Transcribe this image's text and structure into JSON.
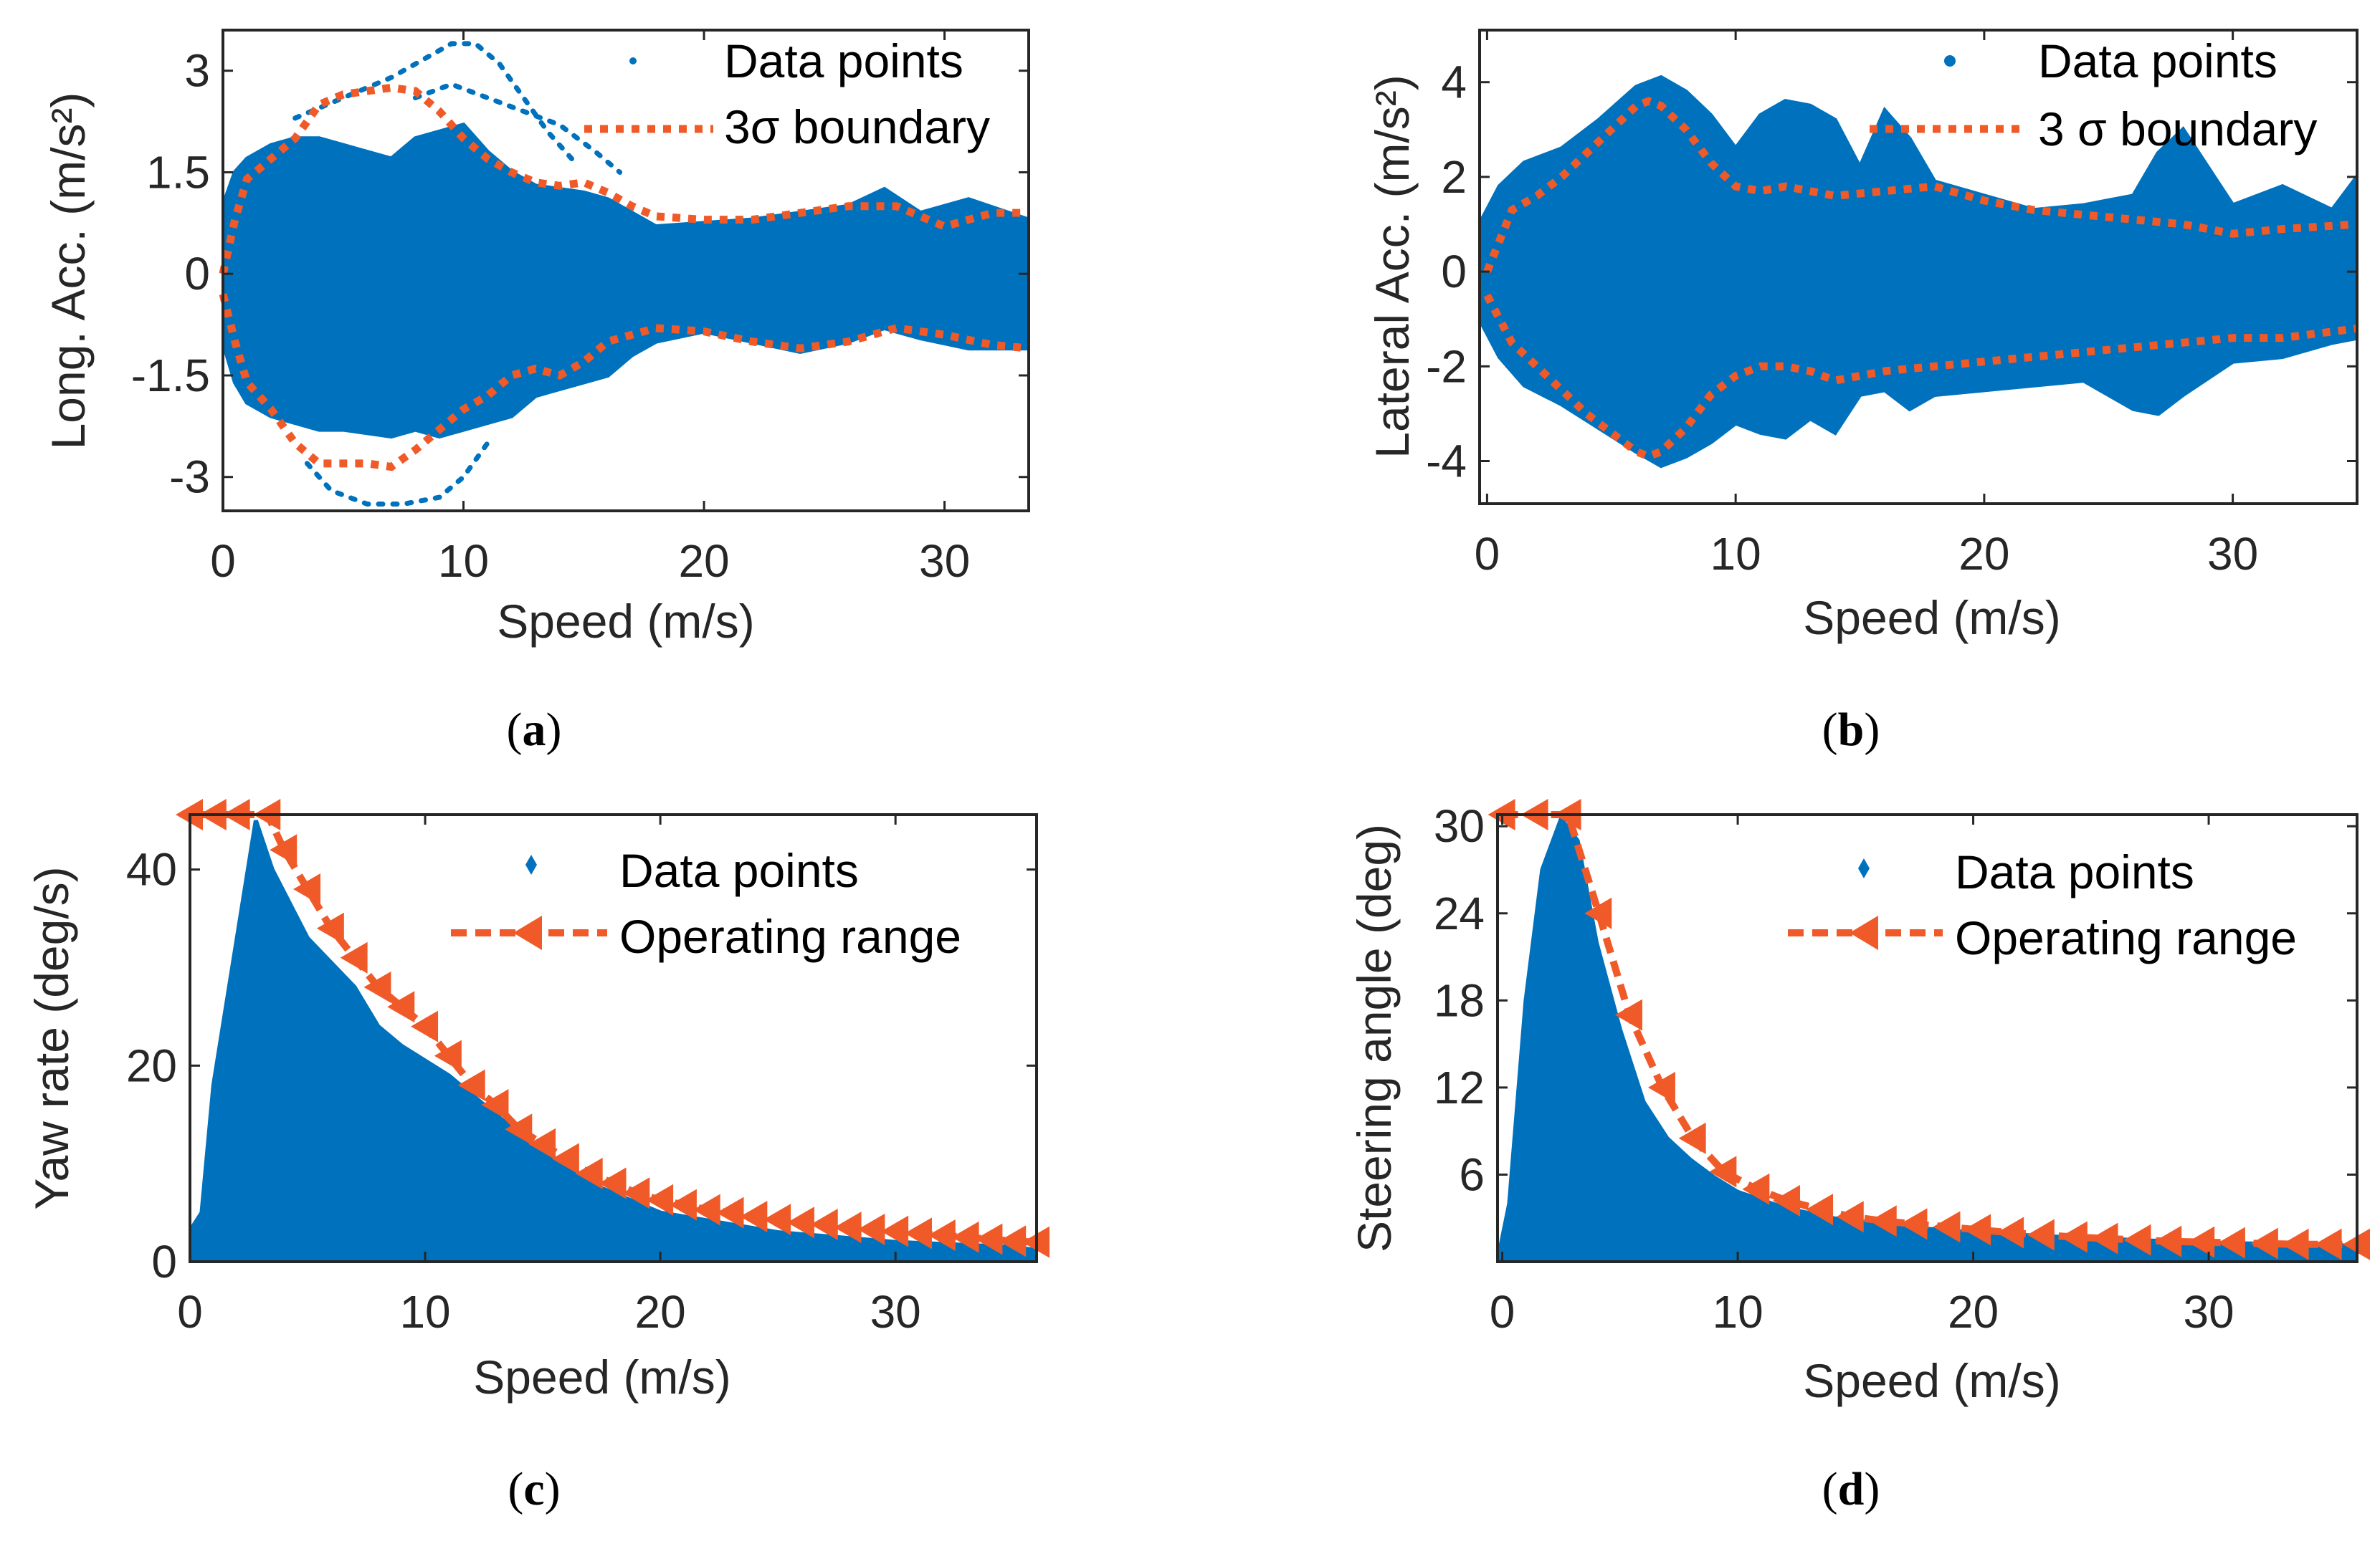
{
  "chart_data": [
    {
      "id": "a",
      "type": "scatter",
      "caption_letter": "a",
      "xlabel": "Speed (m/s)",
      "ylabel": "Long. Acc. (m/s²)",
      "xlim": [
        0,
        33.5
      ],
      "ylim": [
        -3.5,
        3.6
      ],
      "xticks": [
        0,
        10,
        20,
        30
      ],
      "xtick_labels": [
        "0",
        "10",
        "20",
        "30"
      ],
      "yticks": [
        3,
        1.5,
        0,
        -1.5,
        -3
      ],
      "ytick_labels": [
        "3",
        "1.5",
        "0",
        "-1.5",
        "-3"
      ],
      "legend": {
        "placement": "top-right",
        "entries": [
          "Data points",
          "3σ boundary"
        ]
      },
      "colors": {
        "data": "#0072BD",
        "boundary": "#F05A28"
      },
      "boundary_style": "dotted",
      "data_cloud": {
        "x": [
          0,
          0.5,
          1,
          2,
          3,
          4,
          5,
          6,
          7,
          8,
          9,
          10,
          11,
          12,
          13,
          14,
          15,
          16,
          17,
          18,
          20,
          22,
          24,
          26,
          27.5,
          29,
          31,
          33.5
        ],
        "upper": [
          1.0,
          1.5,
          1.7,
          1.9,
          2.0,
          2.0,
          1.9,
          1.8,
          1.7,
          2.0,
          2.1,
          2.2,
          1.8,
          1.5,
          1.3,
          1.25,
          1.2,
          1.1,
          0.9,
          0.7,
          0.75,
          0.8,
          0.9,
          1.0,
          1.25,
          0.9,
          1.1,
          0.8
        ],
        "lower": [
          -1.0,
          -1.6,
          -1.9,
          -2.1,
          -2.2,
          -2.3,
          -2.3,
          -2.35,
          -2.4,
          -2.3,
          -2.4,
          -2.3,
          -2.2,
          -2.1,
          -1.8,
          -1.7,
          -1.6,
          -1.5,
          -1.2,
          -1.0,
          -0.85,
          -1.0,
          -1.15,
          -1.0,
          -0.8,
          -0.95,
          -1.1,
          -1.1
        ]
      },
      "data_traces": [
        {
          "x": [
            3,
            5,
            7,
            8.5,
            9.5,
            10.5,
            11.5,
            12.5,
            13.5,
            14.5
          ],
          "y": [
            2.3,
            2.6,
            2.9,
            3.2,
            3.4,
            3.4,
            3.1,
            2.6,
            2.1,
            1.7
          ]
        },
        {
          "x": [
            8,
            9.5,
            11,
            12.5,
            14,
            15.5,
            16.5
          ],
          "y": [
            2.6,
            2.8,
            2.6,
            2.4,
            2.2,
            1.8,
            1.5
          ]
        },
        {
          "x": [
            3.5,
            4.5,
            6,
            7.5,
            9,
            10,
            11
          ],
          "y": [
            -2.8,
            -3.2,
            -3.4,
            -3.4,
            -3.3,
            -3.0,
            -2.5
          ]
        }
      ],
      "boundary": {
        "name": "3σ boundary",
        "x": [
          0,
          0.5,
          1,
          2,
          3,
          4,
          5,
          6,
          7,
          8,
          9,
          10,
          11,
          12,
          13,
          14,
          15,
          16,
          17,
          18,
          20,
          22,
          24,
          26,
          28,
          30,
          32,
          33.5
        ],
        "upper": [
          0,
          0.8,
          1.4,
          1.7,
          2.0,
          2.5,
          2.65,
          2.7,
          2.75,
          2.7,
          2.4,
          2.0,
          1.7,
          1.5,
          1.35,
          1.3,
          1.35,
          1.2,
          1.0,
          0.85,
          0.8,
          0.8,
          0.9,
          1.0,
          1.0,
          0.7,
          0.9,
          0.9
        ],
        "lower": [
          -0.3,
          -1.0,
          -1.6,
          -2.0,
          -2.5,
          -2.8,
          -2.8,
          -2.8,
          -2.85,
          -2.6,
          -2.3,
          -2.0,
          -1.8,
          -1.5,
          -1.4,
          -1.5,
          -1.3,
          -1.0,
          -0.9,
          -0.8,
          -0.85,
          -1.0,
          -1.1,
          -1.0,
          -0.8,
          -0.9,
          -1.05,
          -1.1
        ]
      }
    },
    {
      "id": "b",
      "type": "scatter",
      "caption_letter": "b",
      "xlabel": "Speed (m/s)",
      "ylabel": "Lateral Acc. (m/s²)",
      "xlim": [
        -0.3,
        35
      ],
      "ylim": [
        -4.9,
        5.1
      ],
      "xticks": [
        0,
        10,
        20,
        30
      ],
      "xtick_labels": [
        "0",
        "10",
        "20",
        "30"
      ],
      "yticks": [
        4,
        2,
        0,
        -2,
        -4
      ],
      "ytick_labels": [
        "4",
        "2",
        "0",
        "-2",
        "-4"
      ],
      "legend": {
        "placement": "top-right",
        "entries": [
          "Data points",
          "3 σ boundary"
        ]
      },
      "colors": {
        "data": "#0072BD",
        "boundary": "#F05A28"
      },
      "boundary_style": "dotted",
      "data_cloud": {
        "x": [
          -0.3,
          0.5,
          1.5,
          3,
          4.5,
          6,
          7,
          8,
          9,
          10,
          11,
          12,
          13,
          14,
          15,
          16,
          17,
          18,
          20,
          22,
          24,
          26,
          27,
          28,
          30,
          32,
          34,
          35
        ],
        "upper": [
          1.0,
          1.8,
          2.3,
          2.6,
          3.2,
          3.9,
          4.1,
          3.8,
          3.3,
          2.6,
          3.3,
          3.6,
          3.5,
          3.2,
          2.2,
          3.4,
          2.8,
          1.9,
          1.6,
          1.3,
          1.4,
          1.6,
          2.5,
          3.0,
          1.4,
          1.8,
          1.3,
          2.0
        ],
        "lower": [
          -1.0,
          -1.8,
          -2.4,
          -2.8,
          -3.3,
          -3.8,
          -4.1,
          -3.9,
          -3.6,
          -3.2,
          -3.4,
          -3.5,
          -3.1,
          -3.4,
          -2.6,
          -2.5,
          -2.9,
          -2.6,
          -2.5,
          -2.4,
          -2.3,
          -2.9,
          -3.0,
          -2.6,
          -1.9,
          -1.8,
          -1.5,
          -1.4
        ]
      },
      "data_traces": [],
      "boundary": {
        "name": "3 σ boundary",
        "x": [
          0,
          1,
          2,
          3,
          4,
          5,
          6,
          6.5,
          7,
          8,
          9,
          10,
          11,
          12,
          13,
          14,
          16,
          18,
          20,
          22,
          24,
          26,
          28,
          30,
          32,
          35
        ],
        "upper": [
          0,
          1.3,
          1.6,
          2.0,
          2.5,
          3.0,
          3.5,
          3.6,
          3.5,
          3.0,
          2.3,
          1.8,
          1.7,
          1.8,
          1.7,
          1.6,
          1.7,
          1.8,
          1.5,
          1.3,
          1.2,
          1.1,
          1.0,
          0.8,
          0.9,
          1.0
        ],
        "lower": [
          -0.5,
          -1.5,
          -2.0,
          -2.5,
          -3.0,
          -3.4,
          -3.8,
          -3.9,
          -3.8,
          -3.3,
          -2.6,
          -2.2,
          -2.0,
          -2.0,
          -2.1,
          -2.3,
          -2.1,
          -2.0,
          -1.9,
          -1.8,
          -1.7,
          -1.6,
          -1.5,
          -1.4,
          -1.4,
          -1.2
        ]
      }
    },
    {
      "id": "c",
      "type": "scatter",
      "caption_letter": "c",
      "xlabel": "Speed (m/s)",
      "ylabel": "Yaw rate (deg/s)",
      "xlim": [
        0,
        36
      ],
      "ylim": [
        0,
        45.6
      ],
      "xticks": [
        0,
        10,
        20,
        30
      ],
      "xtick_labels": [
        "0",
        "10",
        "20",
        "30"
      ],
      "yticks": [
        40,
        20,
        0
      ],
      "ytick_labels": [
        "40",
        "20",
        "0"
      ],
      "legend": {
        "placement": "top-right",
        "entries": [
          "Data points",
          "Operating range"
        ]
      },
      "colors": {
        "data": "#0072BD",
        "boundary": "#F05A28"
      },
      "boundary_style": "dashed-triangle",
      "data_cloud": {
        "x": [
          -0.3,
          0.5,
          1,
          2,
          2.8,
          3.5,
          5,
          7,
          8,
          9,
          11,
          13,
          15,
          17,
          20,
          25,
          30,
          35,
          36.5
        ],
        "upper": [
          2,
          5,
          18,
          33,
          45,
          40,
          33,
          28,
          24,
          22,
          19,
          15,
          11,
          8,
          5,
          3,
          2,
          1.5,
          1
        ],
        "lower": [
          0,
          0,
          0,
          0,
          0,
          0,
          0,
          0,
          0,
          0,
          0,
          0,
          0,
          0,
          0,
          0,
          0,
          0,
          0
        ]
      },
      "data_traces": [],
      "boundary": {
        "name": "Operating range",
        "x": [
          0,
          1,
          2,
          3.3,
          4,
          5,
          6,
          7,
          8,
          9,
          10,
          11,
          12,
          13,
          14,
          15,
          16,
          17,
          18,
          19,
          20,
          21,
          22,
          23,
          24,
          25,
          26,
          27,
          28,
          29,
          30,
          31,
          32,
          33,
          34,
          35,
          36
        ],
        "upper": [
          45.6,
          45.6,
          45.6,
          45.6,
          42,
          38,
          34,
          31,
          28,
          26,
          24,
          21,
          18,
          16,
          13.5,
          12,
          10.5,
          9,
          8,
          7,
          6.3,
          5.8,
          5.3,
          5,
          4.6,
          4.3,
          4,
          3.8,
          3.5,
          3.3,
          3.1,
          2.9,
          2.7,
          2.5,
          2.3,
          2.1,
          2.0
        ]
      }
    },
    {
      "id": "d",
      "type": "scatter",
      "caption_letter": "d",
      "xlabel": "Speed (m/s)",
      "ylabel": "Steering angle (deg)",
      "xlim": [
        -0.2,
        36.3
      ],
      "ylim": [
        0,
        30.8
      ],
      "xticks": [
        0,
        10,
        20,
        30
      ],
      "xtick_labels": [
        "0",
        "10",
        "20",
        "30"
      ],
      "yticks": [
        30,
        24,
        18,
        12,
        6
      ],
      "ytick_labels": [
        "30",
        "24",
        "18",
        "12",
        "6"
      ],
      "legend": {
        "placement": "top-right",
        "entries": [
          "Data points",
          "Operating range"
        ]
      },
      "colors": {
        "data": "#0072BD",
        "boundary": "#F05A28"
      },
      "boundary_style": "dashed-triangle",
      "data_cloud": {
        "x": [
          -0.2,
          0.3,
          1,
          1.7,
          2.5,
          3.2,
          4,
          5,
          6,
          7,
          8,
          9,
          10,
          12,
          14,
          17,
          20,
          25,
          30,
          36.3
        ],
        "upper": [
          0,
          4,
          18,
          27,
          30.5,
          29,
          22,
          16,
          11,
          8.5,
          7,
          5.8,
          4.8,
          3.7,
          3.0,
          2.4,
          2.0,
          1.6,
          1.3,
          1.1
        ],
        "lower": [
          0,
          0,
          0,
          0,
          0,
          0,
          0,
          0,
          0,
          0,
          0,
          0,
          0,
          0,
          0,
          0,
          0,
          0,
          0,
          0
        ]
      },
      "data_traces": [],
      "boundary": {
        "name": "Operating range",
        "x": [
          0,
          1.4,
          2.8,
          4.1,
          5.4,
          6.8,
          8.1,
          9.4,
          10.8,
          12.1,
          13.5,
          14.8,
          16.2,
          17.5,
          18.9,
          20.2,
          21.6,
          22.9,
          24.3,
          25.6,
          27,
          28.3,
          29.7,
          31,
          32.4,
          33.7,
          35.1,
          36.3
        ],
        "upper": [
          30.8,
          30.8,
          30.8,
          24,
          17,
          12,
          8.5,
          6.2,
          5.0,
          4.2,
          3.6,
          3.1,
          2.8,
          2.6,
          2.4,
          2.2,
          2.0,
          1.85,
          1.7,
          1.6,
          1.5,
          1.4,
          1.35,
          1.3,
          1.25,
          1.2,
          1.2,
          1.2
        ]
      }
    }
  ]
}
